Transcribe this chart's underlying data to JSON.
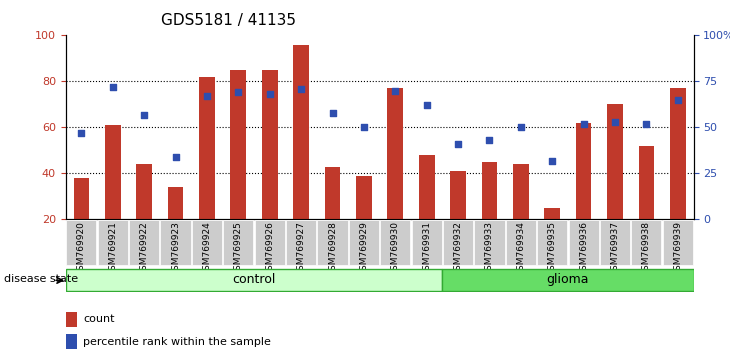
{
  "title": "GDS5181 / 41135",
  "samples": [
    "GSM769920",
    "GSM769921",
    "GSM769922",
    "GSM769923",
    "GSM769924",
    "GSM769925",
    "GSM769926",
    "GSM769927",
    "GSM769928",
    "GSM769929",
    "GSM769930",
    "GSM769931",
    "GSM769932",
    "GSM769933",
    "GSM769934",
    "GSM769935",
    "GSM769936",
    "GSM769937",
    "GSM769938",
    "GSM769939"
  ],
  "bar_values": [
    38,
    61,
    44,
    34,
    82,
    85,
    85,
    96,
    43,
    39,
    77,
    48,
    41,
    45,
    44,
    25,
    62,
    70,
    52,
    77
  ],
  "dot_values": [
    47,
    72,
    57,
    34,
    67,
    69,
    68,
    71,
    58,
    50,
    70,
    62,
    41,
    43,
    50,
    32,
    52,
    53,
    52,
    65
  ],
  "control_count": 12,
  "glioma_count": 8,
  "ylim_left": [
    20,
    100
  ],
  "yticks_left": [
    20,
    40,
    60,
    80,
    100
  ],
  "yticks_right": [
    0,
    25,
    50,
    75,
    100
  ],
  "bar_color": "#C0392B",
  "dot_color": "#2E4EAE",
  "control_bg": "#CCFFCC",
  "glioma_bg": "#66DD66",
  "tick_label_bg": "#CCCCCC",
  "legend_count_label": "count",
  "legend_pct_label": "percentile rank within the sample",
  "disease_state_label": "disease state",
  "control_label": "control",
  "glioma_label": "glioma"
}
